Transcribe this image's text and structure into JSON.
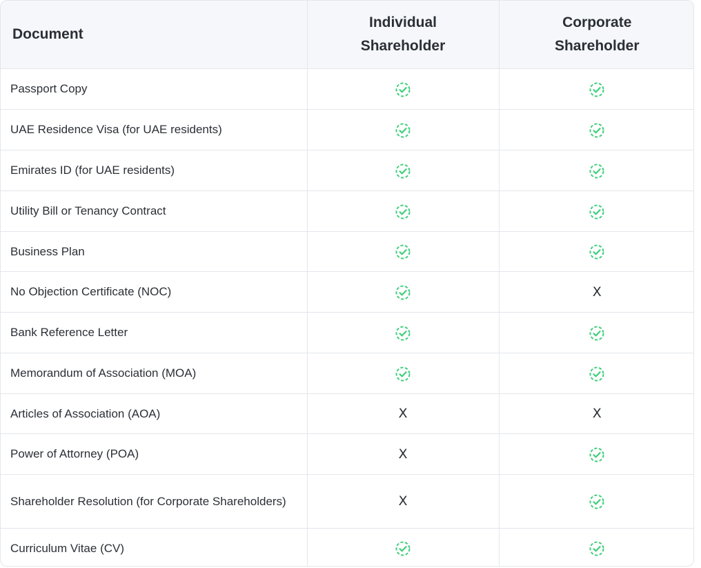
{
  "table": {
    "headers": [
      "Document",
      "Individual Shareholder",
      "Corporate Shareholder"
    ],
    "check_color": "#3ecf7a",
    "x_symbol": "X",
    "rows": [
      {
        "document": "Passport Copy",
        "individual": "check",
        "corporate": "check",
        "height": 59
      },
      {
        "document": "UAE Residence Visa (for UAE residents)",
        "individual": "check",
        "corporate": "check",
        "height": 59
      },
      {
        "document": "Emirates ID (for UAE residents)",
        "individual": "check",
        "corporate": "check",
        "height": 59
      },
      {
        "document": "Utility Bill or Tenancy Contract",
        "individual": "check",
        "corporate": "check",
        "height": 59
      },
      {
        "document": "Business Plan",
        "individual": "check",
        "corporate": "check",
        "height": 58
      },
      {
        "document": "No Objection Certificate (NOC)",
        "individual": "check",
        "corporate": "x",
        "height": 59
      },
      {
        "document": "Bank Reference Letter",
        "individual": "check",
        "corporate": "check",
        "height": 59
      },
      {
        "document": "Memorandum of Association (MOA)",
        "individual": "check",
        "corporate": "check",
        "height": 59
      },
      {
        "document": "Articles of Association (AOA)",
        "individual": "x",
        "corporate": "x",
        "height": 58
      },
      {
        "document": "Power of Attorney (POA)",
        "individual": "x",
        "corporate": "check",
        "height": 59
      },
      {
        "document": "Shareholder Resolution (for Corporate Shareholders)",
        "individual": "x",
        "corporate": "check",
        "height": 78
      },
      {
        "document": "Curriculum Vitae (CV)",
        "individual": "check",
        "corporate": "check",
        "height": 58
      }
    ]
  }
}
